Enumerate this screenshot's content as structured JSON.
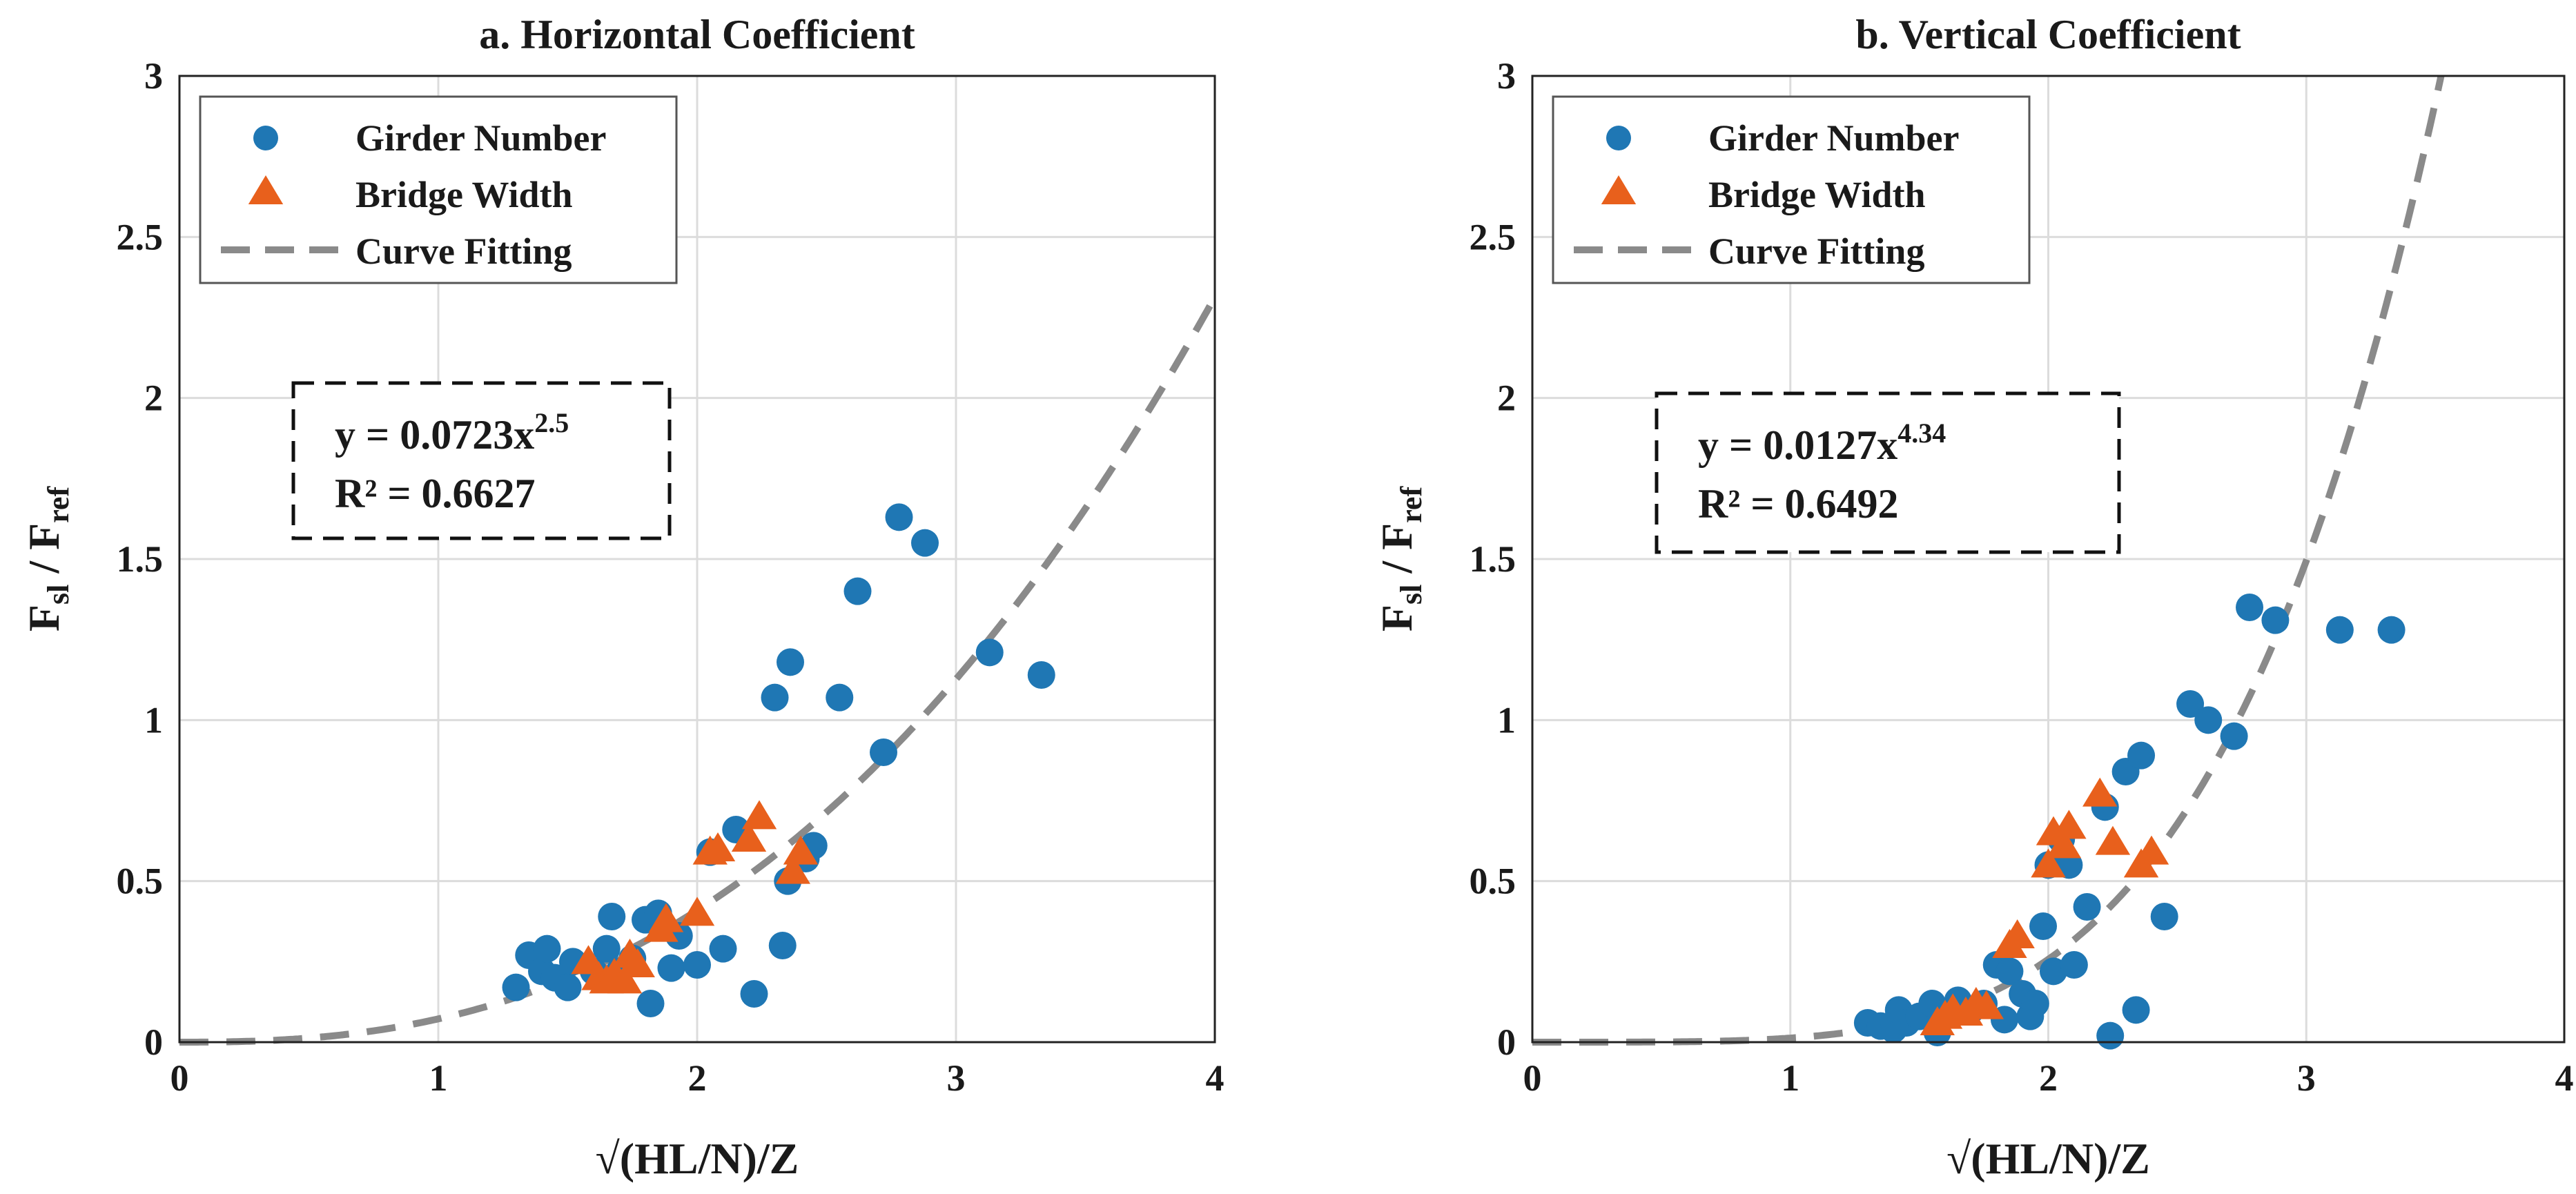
{
  "colors": {
    "girder": "#1f77b4",
    "width": "#e8601c",
    "fit": "#8a8a8a",
    "grid": "#dcdcdc",
    "axis": "#222222"
  },
  "legend": {
    "girder_label": "Girder Number",
    "width_label": "Bridge Width",
    "fit_label": "Curve Fitting"
  },
  "chart_data": [
    {
      "type": "scatter",
      "title": "a. Horizontal Coefficient",
      "xlabel": "√(HL/N)/Z",
      "ylabel_main": "F",
      "ylabel_sub1": "sl",
      "ylabel_mid": " / F",
      "ylabel_sub2": "ref",
      "xlim": [
        0,
        4
      ],
      "ylim": [
        0,
        3
      ],
      "xticks": [
        "0",
        "1",
        "2",
        "3",
        "4"
      ],
      "yticks": [
        "0",
        "0.5",
        "1",
        "1.5",
        "2",
        "2.5",
        "3"
      ],
      "grid": true,
      "fit": {
        "a": 0.0723,
        "b": 2.5
      },
      "equation": {
        "prefix": "y = 0.0723x",
        "exponent": "2.5",
        "r2": "R² = 0.6627"
      },
      "series": [
        {
          "name": "Girder Number",
          "marker": "circle",
          "points": [
            [
              1.3,
              0.17
            ],
            [
              1.35,
              0.27
            ],
            [
              1.4,
              0.22
            ],
            [
              1.42,
              0.29
            ],
            [
              1.45,
              0.2
            ],
            [
              1.5,
              0.17
            ],
            [
              1.52,
              0.25
            ],
            [
              1.6,
              0.22
            ],
            [
              1.65,
              0.29
            ],
            [
              1.67,
              0.39
            ],
            [
              1.7,
              0.22
            ],
            [
              1.75,
              0.26
            ],
            [
              1.8,
              0.38
            ],
            [
              1.82,
              0.12
            ],
            [
              1.85,
              0.4
            ],
            [
              1.9,
              0.23
            ],
            [
              1.93,
              0.33
            ],
            [
              2.0,
              0.24
            ],
            [
              2.05,
              0.59
            ],
            [
              2.1,
              0.29
            ],
            [
              2.15,
              0.66
            ],
            [
              2.22,
              0.15
            ],
            [
              2.3,
              1.07
            ],
            [
              2.33,
              0.3
            ],
            [
              2.35,
              0.5
            ],
            [
              2.36,
              1.18
            ],
            [
              2.42,
              0.57
            ],
            [
              2.45,
              0.61
            ],
            [
              2.55,
              1.07
            ],
            [
              2.62,
              1.4
            ],
            [
              2.72,
              0.9
            ],
            [
              2.78,
              1.63
            ],
            [
              2.88,
              1.55
            ],
            [
              3.13,
              1.21
            ],
            [
              3.33,
              1.14
            ]
          ]
        },
        {
          "name": "Bridge Width",
          "marker": "triangle",
          "points": [
            [
              1.58,
              0.25
            ],
            [
              1.62,
              0.2
            ],
            [
              1.65,
              0.19
            ],
            [
              1.68,
              0.21
            ],
            [
              1.72,
              0.19
            ],
            [
              1.74,
              0.27
            ],
            [
              1.77,
              0.24
            ],
            [
              1.86,
              0.35
            ],
            [
              1.88,
              0.38
            ],
            [
              2.0,
              0.4
            ],
            [
              2.05,
              0.59
            ],
            [
              2.08,
              0.6
            ],
            [
              2.2,
              0.63
            ],
            [
              2.24,
              0.7
            ],
            [
              2.37,
              0.53
            ],
            [
              2.4,
              0.59
            ]
          ]
        }
      ]
    },
    {
      "type": "scatter",
      "title": "b. Vertical Coefficient",
      "xlabel": "√(HL/N)/Z",
      "ylabel_main": "F",
      "ylabel_sub1": "sl",
      "ylabel_mid": " / F",
      "ylabel_sub2": "ref",
      "xlim": [
        0,
        4
      ],
      "ylim": [
        0,
        3
      ],
      "xticks": [
        "0",
        "1",
        "2",
        "3",
        "4"
      ],
      "yticks": [
        "0",
        "0.5",
        "1",
        "1.5",
        "2",
        "2.5",
        "3"
      ],
      "grid": true,
      "fit": {
        "a": 0.0127,
        "b": 4.34
      },
      "equation": {
        "prefix": "y = 0.0127x",
        "exponent": "4.34",
        "r2": "R² = 0.6492"
      },
      "series": [
        {
          "name": "Girder Number",
          "marker": "circle",
          "points": [
            [
              1.3,
              0.06
            ],
            [
              1.35,
              0.05
            ],
            [
              1.4,
              0.04
            ],
            [
              1.42,
              0.1
            ],
            [
              1.45,
              0.06
            ],
            [
              1.5,
              0.08
            ],
            [
              1.55,
              0.12
            ],
            [
              1.57,
              0.03
            ],
            [
              1.6,
              0.09
            ],
            [
              1.65,
              0.13
            ],
            [
              1.7,
              0.1
            ],
            [
              1.75,
              0.12
            ],
            [
              1.8,
              0.24
            ],
            [
              1.83,
              0.07
            ],
            [
              1.85,
              0.22
            ],
            [
              1.9,
              0.15
            ],
            [
              1.93,
              0.08
            ],
            [
              1.95,
              0.12
            ],
            [
              1.98,
              0.36
            ],
            [
              2.0,
              0.55
            ],
            [
              2.02,
              0.22
            ],
            [
              2.05,
              0.63
            ],
            [
              2.08,
              0.55
            ],
            [
              2.1,
              0.24
            ],
            [
              2.15,
              0.42
            ],
            [
              2.22,
              0.73
            ],
            [
              2.24,
              0.02
            ],
            [
              2.3,
              0.84
            ],
            [
              2.34,
              0.1
            ],
            [
              2.36,
              0.89
            ],
            [
              2.45,
              0.39
            ],
            [
              2.55,
              1.05
            ],
            [
              2.62,
              1.0
            ],
            [
              2.72,
              0.95
            ],
            [
              2.78,
              1.35
            ],
            [
              2.88,
              1.31
            ],
            [
              3.13,
              1.28
            ],
            [
              3.33,
              1.28
            ]
          ]
        },
        {
          "name": "Bridge Width",
          "marker": "triangle",
          "points": [
            [
              1.57,
              0.06
            ],
            [
              1.6,
              0.08
            ],
            [
              1.63,
              0.1
            ],
            [
              1.68,
              0.09
            ],
            [
              1.72,
              0.12
            ],
            [
              1.76,
              0.11
            ],
            [
              1.85,
              0.3
            ],
            [
              1.88,
              0.33
            ],
            [
              2.0,
              0.55
            ],
            [
              2.02,
              0.65
            ],
            [
              2.06,
              0.61
            ],
            [
              2.08,
              0.67
            ],
            [
              2.2,
              0.77
            ],
            [
              2.25,
              0.62
            ],
            [
              2.36,
              0.55
            ],
            [
              2.4,
              0.59
            ]
          ]
        }
      ]
    }
  ]
}
